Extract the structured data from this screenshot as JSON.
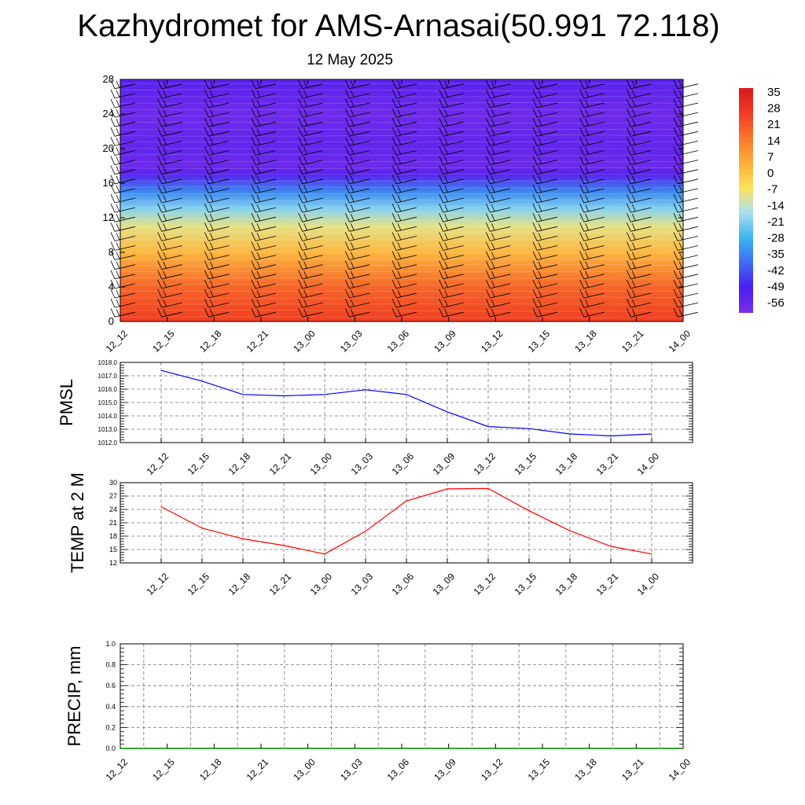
{
  "title": "Kazhydromet for AMS-Arnasai(50.991 72.118)",
  "subtitle": "12 May 2025",
  "times": [
    "12_12",
    "12_15",
    "12_18",
    "12_21",
    "13_00",
    "13_03",
    "13_06",
    "13_09",
    "13_12",
    "13_15",
    "13_18",
    "13_21",
    "14_00"
  ],
  "chart_data": [
    {
      "type": "heatmap",
      "name": "vertical temperature cross-section",
      "x": [
        "12_12",
        "12_15",
        "12_18",
        "12_21",
        "13_00",
        "13_03",
        "13_06",
        "13_09",
        "13_12",
        "13_15",
        "13_18",
        "13_21",
        "14_00"
      ],
      "y_ticks": [
        0,
        4,
        8,
        12,
        16,
        20,
        24,
        28
      ],
      "ylim": [
        0,
        28
      ],
      "colorbar_labels": [
        "35",
        "28",
        "21",
        "14",
        "7",
        "0",
        "-7",
        "-14",
        "-21",
        "-28",
        "-35",
        "-42",
        "-49",
        "-56"
      ],
      "colorbar_range": [
        -63,
        42
      ],
      "colors": [
        "#d7191c",
        "#f03c22",
        "#f8772c",
        "#fcae3c",
        "#fde35c",
        "#a8e0f0",
        "#3cb4f0",
        "#3c6cf0",
        "#4a1ef0",
        "#7a2ee8"
      ],
      "approx_temperature_profile": [
        {
          "y": 0,
          "t": 30
        },
        {
          "y": 4,
          "t": 22
        },
        {
          "y": 8,
          "t": 5
        },
        {
          "y": 11,
          "t": -8
        },
        {
          "y": 13,
          "t": -20
        },
        {
          "y": 15,
          "t": -35
        },
        {
          "y": 17,
          "t": -55
        },
        {
          "y": 18,
          "t": -60
        },
        {
          "y": 20,
          "t": -57
        },
        {
          "y": 24,
          "t": -60
        },
        {
          "y": 28,
          "t": -55
        }
      ],
      "overlay": "wind barbs"
    },
    {
      "type": "line",
      "ylabel": "PMSL",
      "ylim": [
        1012.0,
        1018.0
      ],
      "y_ticks": [
        "1012.0",
        "1013.0",
        "1014.0",
        "1015.0",
        "1016.0",
        "1017.0",
        "1018.0"
      ],
      "x": [
        "12_12",
        "12_15",
        "12_18",
        "12_21",
        "13_00",
        "13_03",
        "13_06",
        "13_09",
        "13_12",
        "13_15",
        "13_18",
        "13_21",
        "14_00"
      ],
      "series": [
        {
          "values": [
            1017.4,
            1016.6,
            1015.6,
            1015.5,
            1015.6,
            1015.95,
            1015.6,
            1014.3,
            1013.2,
            1013.05,
            1012.65,
            1012.5,
            1012.65
          ],
          "color": "#0000ff"
        }
      ],
      "grid": true
    },
    {
      "type": "line",
      "ylabel": "TEMP at 2 M",
      "ylim": [
        12,
        30
      ],
      "y_ticks": [
        "12",
        "15",
        "18",
        "21",
        "24",
        "27",
        "30"
      ],
      "x": [
        "12_12",
        "12_15",
        "12_18",
        "12_21",
        "13_00",
        "13_03",
        "13_06",
        "13_09",
        "13_12",
        "13_15",
        "13_18",
        "13_21",
        "14_00"
      ],
      "series": [
        {
          "values": [
            24.6,
            19.8,
            17.4,
            15.9,
            14.0,
            19.1,
            25.9,
            28.6,
            28.7,
            23.7,
            19.2,
            15.7,
            14.0
          ],
          "color": "#ff0000"
        }
      ],
      "grid": true
    },
    {
      "type": "line",
      "ylabel": "PRECIP, mm",
      "ylim": [
        0.0,
        1.0
      ],
      "y_ticks": [
        "0.0",
        "0.2",
        "0.4",
        "0.6",
        "0.8",
        "1.0"
      ],
      "x": [
        "12_12",
        "12_15",
        "12_18",
        "12_21",
        "13_00",
        "13_03",
        "13_06",
        "13_09",
        "13_12",
        "13_15",
        "13_18",
        "13_21",
        "14_00"
      ],
      "series": [
        {
          "values": [
            0,
            0,
            0,
            0,
            0,
            0,
            0,
            0,
            0,
            0,
            0,
            0,
            0
          ],
          "color": "#008000"
        }
      ],
      "grid": true
    }
  ]
}
